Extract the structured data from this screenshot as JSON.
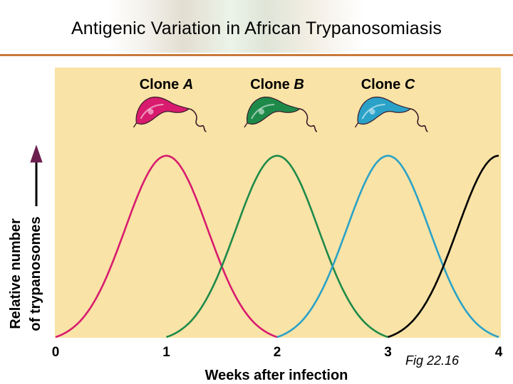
{
  "slide": {
    "title": "Antigenic Variation in African Trypanosomiasis",
    "caption": "Fig 22.16"
  },
  "colors": {
    "plot_background": "#f9e3a6",
    "title_rule": "#c9793a",
    "clone_a": "#d81b6e",
    "clone_b": "#1e8a4a",
    "clone_c": "#2aa2c8",
    "next_clone": "#000000"
  },
  "chart_data": {
    "type": "line",
    "xlabel": "Weeks after infection",
    "ylabel": [
      "Relative number",
      "of trypanosomes"
    ],
    "xlim": [
      0,
      4
    ],
    "ylim": [
      0,
      1
    ],
    "x_ticks": [
      "0",
      "1",
      "2",
      "3",
      "4"
    ],
    "y_ticks": [],
    "grid": false,
    "legend": "none",
    "y_axis_arrow": true,
    "clone_labels": [
      {
        "prefix": "Clone ",
        "letter": "A",
        "at_x": 1
      },
      {
        "prefix": "Clone ",
        "letter": "B",
        "at_x": 2
      },
      {
        "prefix": "Clone ",
        "letter": "C",
        "at_x": 3
      }
    ],
    "series": [
      {
        "name": "Clone A",
        "color": "#d81b6e",
        "x": [
          0,
          0.25,
          0.5,
          0.75,
          1,
          1.25,
          1.5,
          1.75,
          2
        ],
        "y": [
          0,
          0.15,
          0.5,
          0.85,
          1,
          0.85,
          0.5,
          0.15,
          0
        ]
      },
      {
        "name": "Clone B",
        "color": "#1e8a4a",
        "x": [
          1,
          1.25,
          1.5,
          1.75,
          2,
          2.25,
          2.5,
          2.75,
          3
        ],
        "y": [
          0,
          0.15,
          0.5,
          0.85,
          1,
          0.85,
          0.5,
          0.15,
          0
        ]
      },
      {
        "name": "Clone C",
        "color": "#2aa2c8",
        "x": [
          2,
          2.25,
          2.5,
          2.75,
          3,
          3.25,
          3.5,
          3.75,
          4
        ],
        "y": [
          0,
          0.15,
          0.5,
          0.85,
          1,
          0.85,
          0.5,
          0.15,
          0
        ]
      },
      {
        "color": "#000000",
        "x": [
          3,
          3.25,
          3.5,
          3.75,
          4
        ],
        "y": [
          0,
          0.15,
          0.5,
          0.85,
          1
        ]
      }
    ]
  }
}
